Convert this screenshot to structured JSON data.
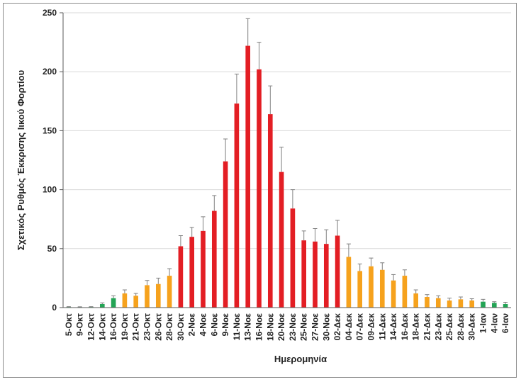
{
  "chart_data": {
    "type": "bar",
    "xlabel": "Ημερομηνία",
    "ylabel": "Σχετικός Ρυθμός Έκκρισης Ιικού Φορτίου",
    "ylim": [
      0,
      250
    ],
    "yticks": [
      0,
      50,
      100,
      150,
      200,
      250
    ],
    "grid": true,
    "categories": [
      "5-Οκτ",
      "9-Οκτ",
      "12-Οκτ",
      "14-Οκτ",
      "16-Οκτ",
      "19-Οκτ",
      "21-Οκτ",
      "23-Οκτ",
      "26-Οκτ",
      "28-Οκτ",
      "30-Οκτ",
      "2-Νοε",
      "4-Νοε",
      "6-Νοε",
      "9-Νοε",
      "11-Νοε",
      "13-Νοε",
      "16-Νοε",
      "18-Νοε",
      "20-Νοε",
      "23-Νοε",
      "25-Νοε",
      "27-Νοε",
      "30-Νοε",
      "02-Δεκ",
      "04-Δεκ",
      "07-Δεκ",
      "09-Δεκ",
      "11-Δεκ",
      "14-Δεκ",
      "16-Δεκ",
      "18-Δεκ",
      "21-Δεκ",
      "23-Δεκ",
      "25-Δεκ",
      "28-Δεκ",
      "30-Δεκ",
      "1-Ιαν",
      "4-Ιαν",
      "6-Ιαν"
    ],
    "values": [
      0.5,
      0.4,
      0.5,
      3,
      8,
      12,
      10,
      19,
      20,
      27,
      52,
      60,
      65,
      82,
      124,
      173,
      222,
      202,
      164,
      115,
      84,
      57,
      56,
      54,
      61,
      43,
      31,
      35,
      32,
      23,
      27,
      12,
      9,
      8,
      6,
      7,
      6,
      5,
      4,
      3
    ],
    "errors": [
      0.3,
      0.3,
      0.3,
      1,
      2,
      3,
      2,
      4,
      5,
      6,
      9,
      8,
      12,
      13,
      19,
      25,
      23,
      23,
      24,
      21,
      16,
      8,
      11,
      12,
      13,
      11,
      6,
      7,
      6,
      5,
      5,
      3,
      2,
      2,
      2,
      2,
      1.5,
      2,
      1,
      1.5
    ],
    "levels": [
      "green",
      "green",
      "green",
      "green",
      "green",
      "orange",
      "orange",
      "orange",
      "orange",
      "orange",
      "red",
      "red",
      "red",
      "red",
      "red",
      "red",
      "red",
      "red",
      "red",
      "red",
      "red",
      "red",
      "red",
      "red",
      "red",
      "orange",
      "orange",
      "orange",
      "orange",
      "orange",
      "orange",
      "orange",
      "orange",
      "orange",
      "orange",
      "orange",
      "orange",
      "green",
      "green",
      "green"
    ],
    "colors": {
      "green": "#23a455",
      "orange": "#f6a21d",
      "red": "#e31e24",
      "error_bar": "#7f7f7f",
      "grid": "#d9d9d9"
    }
  }
}
